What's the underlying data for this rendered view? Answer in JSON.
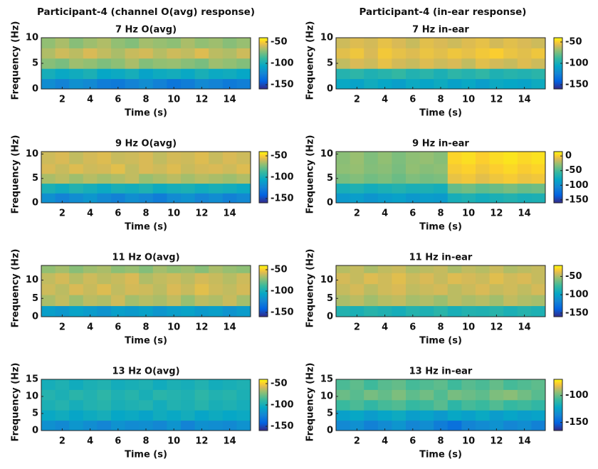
{
  "column_titles": [
    "Participant-4 (channel O(avg) response)",
    "Participant-4 (in-ear response)"
  ],
  "chart_data": [
    {
      "type": "heatmap",
      "title": "7 Hz O(avg)",
      "xlabel": "Time (s)",
      "ylabel": "Frequency (Hz)",
      "colormap": "parula",
      "x": [
        1,
        2,
        3,
        4,
        5,
        6,
        7,
        8,
        9,
        10,
        11,
        12,
        13,
        14,
        15
      ],
      "y": [
        0,
        2,
        4,
        6,
        8,
        10
      ],
      "z": [
        [
          -120,
          -125,
          -118,
          -122,
          -128,
          -130,
          -125,
          -120,
          -126,
          -132,
          -128,
          -122,
          -125,
          -130,
          -127
        ],
        [
          -100,
          -105,
          -102,
          -98,
          -106,
          -104,
          -100,
          -108,
          -103,
          -101,
          -105,
          -99,
          -104,
          -102,
          -106
        ],
        [
          -72,
          -75,
          -68,
          -70,
          -74,
          -71,
          -66,
          -73,
          -70,
          -69,
          -72,
          -75,
          -68,
          -70,
          -73
        ],
        [
          -65,
          -60,
          -63,
          -58,
          -62,
          -66,
          -61,
          -59,
          -64,
          -60,
          -62,
          -57,
          -63,
          -65,
          -60
        ],
        [
          -70,
          -66,
          -72,
          -68,
          -65,
          -70,
          -73,
          -67,
          -69,
          -71,
          -66,
          -70,
          -68,
          -72,
          -69
        ]
      ],
      "xlim": [
        0.5,
        15.5
      ],
      "ylim": [
        0,
        10
      ],
      "xticks": [
        2,
        4,
        6,
        8,
        10,
        12,
        14
      ],
      "yticks": [
        0,
        5,
        10
      ],
      "clim": [
        -160,
        -40
      ],
      "cticks": [
        -50,
        -100,
        -150
      ]
    },
    {
      "type": "heatmap",
      "title": "7 Hz in-ear",
      "xlabel": "Time (s)",
      "ylabel": "Frequency (Hz)",
      "colormap": "parula",
      "x": [
        1,
        2,
        3,
        4,
        5,
        6,
        7,
        8,
        9,
        10,
        11,
        12,
        13,
        14,
        15
      ],
      "y": [
        0,
        2,
        4,
        6,
        8,
        10
      ],
      "z": [
        [
          -105,
          -108,
          -102,
          -106,
          -110,
          -104,
          -107,
          -103,
          -109,
          -105,
          -111,
          -104,
          -106,
          -108,
          -103
        ],
        [
          -95,
          -92,
          -97,
          -94,
          -90,
          -96,
          -93,
          -98,
          -92,
          -95,
          -91,
          -97,
          -94,
          -96,
          -93
        ],
        [
          -62,
          -58,
          -60,
          -55,
          -59,
          -61,
          -57,
          -60,
          -58,
          -62,
          -56,
          -59,
          -61,
          -57,
          -60
        ],
        [
          -56,
          -53,
          -58,
          -52,
          -55,
          -57,
          -54,
          -56,
          -53,
          -55,
          -52,
          -50,
          -54,
          -56,
          -53
        ],
        [
          -60,
          -57,
          -59,
          -55,
          -58,
          -61,
          -56,
          -58,
          -60,
          -57,
          -55,
          -59,
          -56,
          -58,
          -60
        ]
      ],
      "xlim": [
        0.5,
        15.5
      ],
      "ylim": [
        0,
        10
      ],
      "xticks": [
        2,
        4,
        6,
        8,
        10,
        12,
        14
      ],
      "yticks": [
        0,
        5,
        10
      ],
      "clim": [
        -160,
        -40
      ],
      "cticks": [
        -50,
        -100,
        -150
      ]
    },
    {
      "type": "heatmap",
      "title": "9 Hz O(avg)",
      "xlabel": "Time (s)",
      "ylabel": "Frequency (Hz)",
      "colormap": "parula",
      "x": [
        1,
        2,
        3,
        4,
        5,
        6,
        7,
        8,
        9,
        10,
        11,
        12,
        13,
        14,
        15
      ],
      "y": [
        0,
        2,
        4,
        6,
        8,
        10.5
      ],
      "z": [
        [
          -118,
          -125,
          -120,
          -115,
          -122,
          -126,
          -119,
          -123,
          -128,
          -121,
          -117,
          -124,
          -120,
          -126,
          -122
        ],
        [
          -98,
          -102,
          -96,
          -100,
          -104,
          -99,
          -101,
          -97,
          -103,
          -100,
          -98,
          -102,
          -99,
          -101,
          -104
        ],
        [
          -66,
          -63,
          -68,
          -64,
          -67,
          -65,
          -62,
          -69,
          -66,
          -63,
          -67,
          -64,
          -66,
          -68,
          -65
        ],
        [
          -58,
          -61,
          -57,
          -60,
          -59,
          -56,
          -62,
          -58,
          -60,
          -57,
          -61,
          -59,
          -58,
          -60,
          -57
        ],
        [
          -60,
          -58,
          -62,
          -59,
          -57,
          -61,
          -60,
          -58,
          -62,
          -59,
          -60,
          -57,
          -61,
          -58,
          -60
        ]
      ],
      "xlim": [
        0.5,
        15.5
      ],
      "ylim": [
        0,
        10.5
      ],
      "xticks": [
        2,
        4,
        6,
        8,
        10,
        12,
        14
      ],
      "yticks": [
        0,
        5,
        10
      ],
      "clim": [
        -160,
        -40
      ],
      "cticks": [
        -50,
        -100,
        -150
      ]
    },
    {
      "type": "heatmap",
      "title": "9 Hz in-ear",
      "xlabel": "Time (s)",
      "ylabel": "Frequency (Hz)",
      "colormap": "parula",
      "x": [
        1,
        2,
        3,
        4,
        5,
        6,
        7,
        8,
        9,
        10,
        11,
        12,
        13,
        14,
        15
      ],
      "y": [
        0,
        2,
        4,
        6,
        8,
        10.5
      ],
      "z": [
        [
          -92,
          -88,
          -95,
          -90,
          -86,
          -93,
          -89,
          -91,
          -72,
          -68,
          -74,
          -70,
          -66,
          -71,
          -69
        ],
        [
          -72,
          -68,
          -74,
          -70,
          -66,
          -71,
          -69,
          -73,
          -42,
          -38,
          -44,
          -40,
          -36,
          -41,
          -39
        ],
        [
          -36,
          -33,
          -38,
          -35,
          -40,
          -34,
          -37,
          -35,
          -6,
          -3,
          -8,
          -4,
          -1,
          -5,
          -3
        ],
        [
          -30,
          -28,
          -33,
          -31,
          -36,
          -29,
          -32,
          -30,
          -1,
          2,
          -3,
          1,
          4,
          0,
          3
        ],
        [
          -31,
          -27,
          -34,
          -29,
          -35,
          -30,
          -28,
          -32,
          3,
          6,
          1,
          5,
          8,
          4,
          7
        ]
      ],
      "xlim": [
        0.5,
        15.5
      ],
      "ylim": [
        0,
        10.5
      ],
      "xticks": [
        2,
        4,
        6,
        8,
        10,
        12,
        14
      ],
      "yticks": [
        0,
        5,
        10
      ],
      "clim": [
        -160,
        15
      ],
      "cticks": [
        0,
        -50,
        -100,
        -150
      ]
    },
    {
      "type": "heatmap",
      "title": "11 Hz O(avg)",
      "xlabel": "Time (s)",
      "ylabel": "Frequency (Hz)",
      "colormap": "parula",
      "x": [
        1,
        2,
        3,
        4,
        5,
        6,
        7,
        8,
        9,
        10,
        11,
        12,
        13,
        14,
        15
      ],
      "y": [
        0,
        3,
        6,
        9,
        12,
        14
      ],
      "z": [
        [
          -110,
          -114,
          -108,
          -112,
          -116,
          -110,
          -113,
          -109,
          -115,
          -111,
          -108,
          -113,
          -110,
          -116,
          -112
        ],
        [
          -66,
          -62,
          -68,
          -63,
          -65,
          -60,
          -67,
          -64,
          -66,
          -62,
          -69,
          -63,
          -65,
          -61,
          -67
        ],
        [
          -60,
          -63,
          -58,
          -61,
          -57,
          -62,
          -59,
          -60,
          -63,
          -58,
          -61,
          -56,
          -60,
          -62,
          -59
        ],
        [
          -62,
          -59,
          -64,
          -60,
          -63,
          -61,
          -58,
          -65,
          -62,
          -60,
          -63,
          -59,
          -61,
          -64,
          -60
        ],
        [
          -70,
          -67,
          -72,
          -68,
          -66,
          -71,
          -69,
          -73,
          -67,
          -70,
          -68,
          -72,
          -66,
          -69,
          -71
        ]
      ],
      "xlim": [
        0.5,
        15.5
      ],
      "ylim": [
        0,
        14
      ],
      "xticks": [
        2,
        4,
        6,
        8,
        10,
        12,
        14
      ],
      "yticks": [
        0,
        5,
        10
      ],
      "clim": [
        -160,
        -40
      ],
      "cticks": [
        -50,
        -100,
        -150
      ]
    },
    {
      "type": "heatmap",
      "title": "11 Hz in-ear",
      "xlabel": "Time (s)",
      "ylabel": "Frequency (Hz)",
      "colormap": "parula",
      "x": [
        1,
        2,
        3,
        4,
        5,
        6,
        7,
        8,
        9,
        10,
        11,
        12,
        13,
        14,
        15
      ],
      "y": [
        0,
        3,
        6,
        9,
        12,
        14
      ],
      "z": [
        [
          -85,
          -88,
          -83,
          -86,
          -90,
          -84,
          -87,
          -82,
          -89,
          -85,
          -86,
          -83,
          -88,
          -84,
          -87
        ],
        [
          -50,
          -47,
          -52,
          -48,
          -46,
          -51,
          -49,
          -53,
          -47,
          -50,
          -48,
          -52,
          -46,
          -49,
          -51
        ],
        [
          -45,
          -42,
          -47,
          -43,
          -41,
          -46,
          -44,
          -42,
          -47,
          -44,
          -41,
          -45,
          -43,
          -46,
          -42
        ],
        [
          -42,
          -45,
          -40,
          -43,
          -39,
          -44,
          -41,
          -45,
          -40,
          -42,
          -44,
          -39,
          -43,
          -41,
          -45
        ],
        [
          -48,
          -45,
          -50,
          -46,
          -44,
          -49,
          -47,
          -45,
          -50,
          -46,
          -48,
          -44,
          -49,
          -47,
          -45
        ]
      ],
      "xlim": [
        0.5,
        15.5
      ],
      "ylim": [
        0,
        14
      ],
      "xticks": [
        2,
        4,
        6,
        8,
        10,
        12,
        14
      ],
      "yticks": [
        0,
        5,
        10
      ],
      "clim": [
        -160,
        -20
      ],
      "cticks": [
        -50,
        -100,
        -150
      ]
    },
    {
      "type": "heatmap",
      "title": "13 Hz O(avg)",
      "xlabel": "Time (s)",
      "ylabel": "Frequency (Hz)",
      "colormap": "parula",
      "x": [
        1,
        2,
        3,
        4,
        5,
        6,
        7,
        8,
        9,
        10,
        11,
        12,
        13,
        14,
        15
      ],
      "y": [
        0,
        3,
        6,
        9,
        12,
        15
      ],
      "z": [
        [
          -118,
          -122,
          -115,
          -120,
          -124,
          -117,
          -121,
          -119,
          -123,
          -116,
          -125,
          -118,
          -120,
          -122,
          -117
        ],
        [
          -105,
          -102,
          -107,
          -103,
          -100,
          -106,
          -104,
          -108,
          -102,
          -105,
          -101,
          -107,
          -103,
          -106,
          -104
        ],
        [
          -98,
          -95,
          -100,
          -96,
          -94,
          -99,
          -97,
          -95,
          -101,
          -96,
          -98,
          -94,
          -99,
          -97,
          -100
        ],
        [
          -95,
          -98,
          -93,
          -96,
          -92,
          -97,
          -94,
          -99,
          -93,
          -95,
          -97,
          -92,
          -96,
          -94,
          -98
        ],
        [
          -100,
          -97,
          -102,
          -98,
          -96,
          -101,
          -99,
          -97,
          -102,
          -98,
          -100,
          -96,
          -101,
          -99,
          -97
        ]
      ],
      "xlim": [
        0.5,
        15.5
      ],
      "ylim": [
        0,
        15
      ],
      "xticks": [
        2,
        4,
        6,
        8,
        10,
        12,
        14
      ],
      "yticks": [
        0,
        5,
        10,
        15
      ],
      "clim": [
        -160,
        -40
      ],
      "cticks": [
        -50,
        -100,
        -150
      ]
    },
    {
      "type": "heatmap",
      "title": "13 Hz in-ear",
      "xlabel": "Time (s)",
      "ylabel": "Frequency (Hz)",
      "colormap": "parula",
      "x": [
        1,
        2,
        3,
        4,
        5,
        6,
        7,
        8,
        9,
        10,
        11,
        12,
        13,
        14,
        15
      ],
      "y": [
        0,
        3,
        6,
        9,
        12,
        15
      ],
      "z": [
        [
          -135,
          -132,
          -138,
          -134,
          -130,
          -136,
          -133,
          -140,
          -145,
          -137,
          -134,
          -131,
          -136,
          -133,
          -138
        ],
        [
          -125,
          -122,
          -127,
          -123,
          -120,
          -126,
          -124,
          -128,
          -122,
          -125,
          -121,
          -127,
          -123,
          -126,
          -124
        ],
        [
          -108,
          -105,
          -110,
          -106,
          -104,
          -109,
          -107,
          -103,
          -111,
          -106,
          -108,
          -104,
          -109,
          -107,
          -110
        ],
        [
          -100,
          -103,
          -98,
          -101,
          -97,
          -102,
          -99,
          -104,
          -98,
          -100,
          -102,
          -97,
          -95,
          -99,
          -103
        ],
        [
          -105,
          -102,
          -107,
          -103,
          -101,
          -106,
          -104,
          -102,
          -107,
          -103,
          -105,
          -101,
          -106,
          -104,
          -102
        ]
      ],
      "xlim": [
        0.5,
        15.5
      ],
      "ylim": [
        0,
        15
      ],
      "xticks": [
        2,
        4,
        6,
        8,
        10,
        12,
        14
      ],
      "yticks": [
        0,
        5,
        10,
        15
      ],
      "clim": [
        -165,
        -70
      ],
      "cticks": [
        -100,
        -150
      ]
    }
  ]
}
